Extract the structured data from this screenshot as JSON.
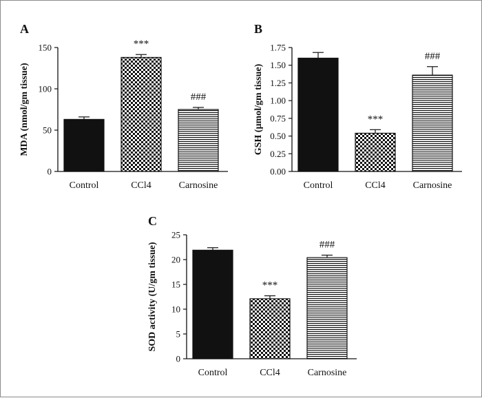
{
  "chart_data": [
    {
      "panel_label": "A",
      "type": "bar",
      "categories": [
        "Control",
        "CCl4",
        "Carnosine"
      ],
      "values": [
        63,
        138,
        75
      ],
      "errors": [
        3,
        3.5,
        2.5
      ],
      "patterns": [
        "solid",
        "checker",
        "hstripe"
      ],
      "annotations": [
        "",
        "***",
        "###"
      ],
      "ylabel": "MDA (nmol/gm tissue)",
      "ylim": [
        0,
        150
      ],
      "yticks": [
        0,
        50,
        100,
        150
      ],
      "ytick_labels": [
        "0",
        "50",
        "100",
        "150"
      ]
    },
    {
      "panel_label": "B",
      "type": "bar",
      "categories": [
        "Control",
        "CCl4",
        "Carnosine"
      ],
      "values": [
        1.6,
        0.54,
        1.36
      ],
      "errors": [
        0.08,
        0.05,
        0.12
      ],
      "patterns": [
        "solid",
        "checker",
        "hstripe"
      ],
      "annotations": [
        "",
        "***",
        "###"
      ],
      "ylabel": "GSH (µmol/gm tissue)",
      "ylim": [
        0,
        1.75
      ],
      "yticks": [
        0,
        0.25,
        0.5,
        0.75,
        1.0,
        1.25,
        1.5,
        1.75
      ],
      "ytick_labels": [
        "0.00",
        "0.25",
        "0.50",
        "0.75",
        "1.00",
        "1.25",
        "1.50",
        "1.75"
      ]
    },
    {
      "panel_label": "C",
      "type": "bar",
      "categories": [
        "Control",
        "CCl4",
        "Carnosine"
      ],
      "values": [
        21.9,
        12.1,
        20.4
      ],
      "errors": [
        0.5,
        0.6,
        0.5
      ],
      "patterns": [
        "solid",
        "checker",
        "hstripe"
      ],
      "annotations": [
        "",
        "***",
        "###"
      ],
      "ylabel": "SOD activity (U/gm tissue)",
      "ylim": [
        0,
        25
      ],
      "yticks": [
        0,
        5,
        10,
        15,
        20,
        25
      ],
      "ytick_labels": [
        "0",
        "5",
        "10",
        "15",
        "20",
        "25"
      ]
    }
  ],
  "colors": {
    "bar_fill": "#111111",
    "axis": "#111111",
    "background": "#ffffff"
  }
}
